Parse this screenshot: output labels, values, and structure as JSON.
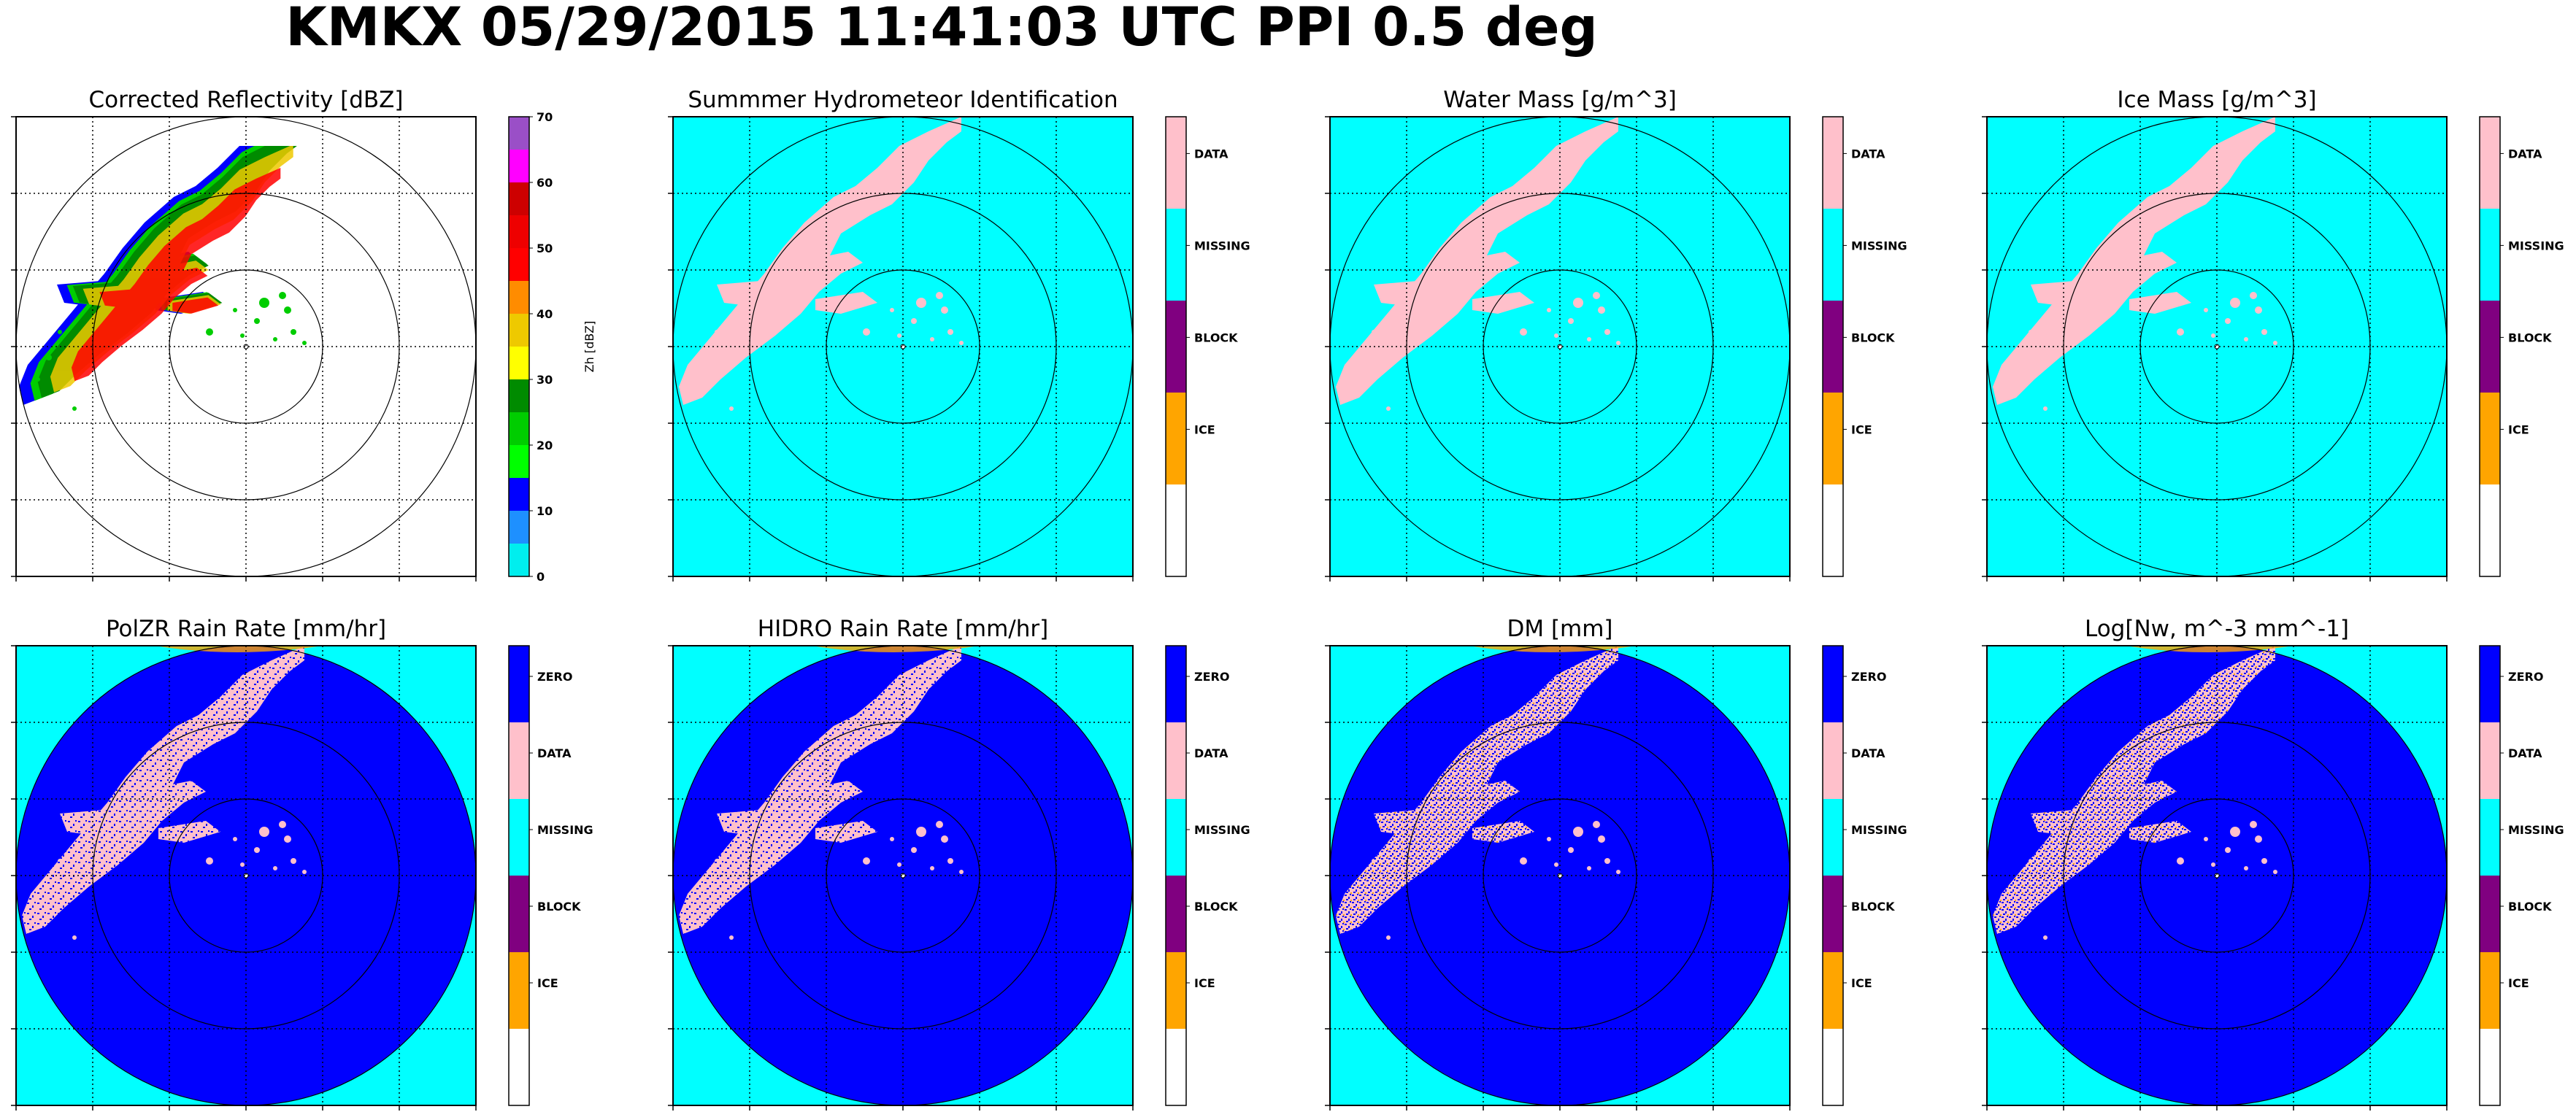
{
  "figure": {
    "title": "KMKX 05/29/2015 11:41:03 UTC PPI 0.5 deg"
  },
  "colors": {
    "data": "#ffc0cb",
    "missing": "#00ffff",
    "block": "#800080",
    "ice": "#ffa500",
    "none": "#ffffff",
    "zero": "#0000ff"
  },
  "chart_data": [
    {
      "type": "heatmap",
      "id": "reflectivity",
      "title": "Corrected Reflectivity [dBZ]",
      "background": "none",
      "grid": true,
      "range_rings": 3,
      "colorbar": {
        "label": "Zh [dBZ]",
        "ticks": [
          "0",
          "10",
          "20",
          "30",
          "40",
          "50",
          "60",
          "70"
        ],
        "range": [
          0,
          70
        ],
        "bins": [
          {
            "from": 0,
            "to": 5,
            "color": "#00eeee"
          },
          {
            "from": 5,
            "to": 10,
            "color": "#1e90ff"
          },
          {
            "from": 10,
            "to": 15,
            "color": "#0000ff"
          },
          {
            "from": 15,
            "to": 20,
            "color": "#00ff00"
          },
          {
            "from": 20,
            "to": 25,
            "color": "#00cd00"
          },
          {
            "from": 25,
            "to": 30,
            "color": "#008b00"
          },
          {
            "from": 30,
            "to": 35,
            "color": "#ffff00"
          },
          {
            "from": 35,
            "to": 40,
            "color": "#eec900"
          },
          {
            "from": 40,
            "to": 45,
            "color": "#ff8c00"
          },
          {
            "from": 45,
            "to": 50,
            "color": "#ff0000"
          },
          {
            "from": 50,
            "to": 55,
            "color": "#ee0000"
          },
          {
            "from": 55,
            "to": 60,
            "color": "#cd0000"
          },
          {
            "from": 60,
            "to": 65,
            "color": "#ff00ff"
          },
          {
            "from": 65,
            "to": 70,
            "color": "#9a4fc7"
          }
        ]
      }
    },
    {
      "type": "heatmap",
      "id": "hydrometeor",
      "title": "Summmer Hydrometeor Identification",
      "background": "missing",
      "disk": null,
      "grid": true,
      "range_rings": 3,
      "colorbar": {
        "categories": [
          "DATA",
          "MISSING",
          "BLOCK",
          "ICE",
          ""
        ],
        "colors": [
          "data",
          "missing",
          "block",
          "ice",
          "none"
        ]
      }
    },
    {
      "type": "heatmap",
      "id": "water_mass",
      "title": "Water Mass [g/m^3]",
      "background": "missing",
      "disk": null,
      "grid": true,
      "range_rings": 3,
      "colorbar": {
        "categories": [
          "DATA",
          "MISSING",
          "BLOCK",
          "ICE",
          ""
        ],
        "colors": [
          "data",
          "missing",
          "block",
          "ice",
          "none"
        ]
      }
    },
    {
      "type": "heatmap",
      "id": "ice_mass",
      "title": "Ice Mass [g/m^3]",
      "background": "missing",
      "disk": null,
      "grid": true,
      "range_rings": 3,
      "colorbar": {
        "categories": [
          "DATA",
          "MISSING",
          "BLOCK",
          "ICE",
          ""
        ],
        "colors": [
          "data",
          "missing",
          "block",
          "ice",
          "none"
        ]
      }
    },
    {
      "type": "heatmap",
      "id": "polzr_rain",
      "title": "PolZR Rain Rate [mm/hr]",
      "background": "missing",
      "disk": "zero",
      "grid": true,
      "range_rings": 3,
      "colorbar": {
        "categories": [
          "ZERO",
          "DATA",
          "MISSING",
          "BLOCK",
          "ICE",
          ""
        ],
        "colors": [
          "zero",
          "data",
          "missing",
          "block",
          "ice",
          "none"
        ]
      }
    },
    {
      "type": "heatmap",
      "id": "hidro_rain",
      "title": "HIDRO Rain Rate [mm/hr]",
      "background": "missing",
      "disk": "zero",
      "grid": true,
      "range_rings": 3,
      "colorbar": {
        "categories": [
          "ZERO",
          "DATA",
          "MISSING",
          "BLOCK",
          "ICE",
          ""
        ],
        "colors": [
          "zero",
          "data",
          "missing",
          "block",
          "ice",
          "none"
        ]
      }
    },
    {
      "type": "heatmap",
      "id": "dm",
      "title": "DM [mm]",
      "background": "missing",
      "disk": "zero",
      "grid": true,
      "range_rings": 3,
      "colorbar": {
        "categories": [
          "ZERO",
          "DATA",
          "MISSING",
          "BLOCK",
          "ICE",
          ""
        ],
        "colors": [
          "zero",
          "data",
          "missing",
          "block",
          "ice",
          "none"
        ]
      }
    },
    {
      "type": "heatmap",
      "id": "log_nw",
      "title": "Log[Nw, m^-3 mm^-1]",
      "background": "missing",
      "disk": "zero",
      "grid": true,
      "range_rings": 3,
      "colorbar": {
        "categories": [
          "ZERO",
          "DATA",
          "MISSING",
          "BLOCK",
          "ICE",
          ""
        ],
        "colors": [
          "zero",
          "data",
          "missing",
          "block",
          "ice",
          "none"
        ]
      }
    }
  ]
}
